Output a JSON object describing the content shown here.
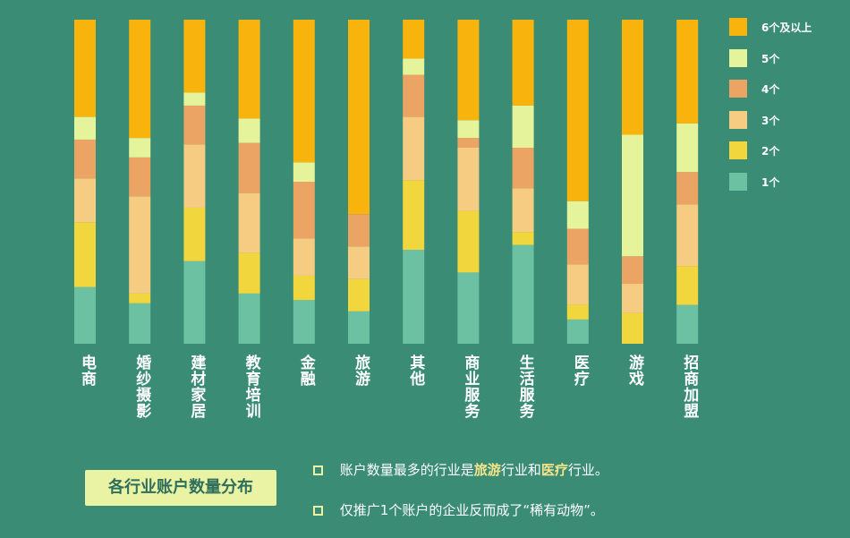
{
  "chart_data": {
    "type": "bar",
    "stacked": true,
    "normalized": true,
    "categories": [
      "电商",
      "婚纱摄影",
      "建材家居",
      "教育培训",
      "金融",
      "旅游",
      "其他",
      "商业服务",
      "生活服务",
      "医疗",
      "游戏",
      "招商加盟"
    ],
    "series": [
      {
        "name": "1个",
        "color": "#6cc1a2",
        "values": [
          17.5,
          12.5,
          25.5,
          15.5,
          13.5,
          10.0,
          29.0,
          22.0,
          30.5,
          7.5,
          0.0,
          12.0
        ]
      },
      {
        "name": "2个",
        "color": "#f1d73d",
        "values": [
          20.0,
          3.0,
          16.5,
          12.5,
          7.5,
          10.0,
          21.5,
          19.0,
          4.0,
          4.5,
          9.5,
          12.0
        ]
      },
      {
        "name": "3个",
        "color": "#f6cc82",
        "values": [
          13.5,
          30.0,
          19.5,
          18.5,
          11.5,
          10.0,
          19.5,
          19.5,
          13.5,
          12.5,
          9.0,
          19.0
        ]
      },
      {
        "name": "4个",
        "color": "#eba464",
        "values": [
          12.0,
          12.0,
          12.0,
          15.5,
          17.5,
          10.0,
          13.0,
          3.0,
          12.5,
          11.0,
          8.5,
          10.0
        ]
      },
      {
        "name": "5个",
        "color": "#e5f49b",
        "values": [
          7.0,
          6.0,
          4.0,
          7.5,
          6.0,
          0.0,
          5.0,
          5.5,
          13.0,
          8.5,
          37.5,
          15.0
        ]
      },
      {
        "name": "6个及以上",
        "color": "#f8b30d",
        "values": [
          30.0,
          36.5,
          22.5,
          30.5,
          44.0,
          60.0,
          12.0,
          31.0,
          26.5,
          56.0,
          35.5,
          32.0
        ]
      }
    ]
  },
  "title": "各行业账户数量分布",
  "notes": [
    {
      "parts": [
        {
          "text": "账户数量最多的行业是",
          "hl": false
        },
        {
          "text": "旅游",
          "hl": true
        },
        {
          "text": "行业和",
          "hl": false
        },
        {
          "text": "医疗",
          "hl": true
        },
        {
          "text": "行业。",
          "hl": false
        }
      ]
    },
    {
      "parts": [
        {
          "text": "仅推广1个账户的企业反而成了“稀有动物”。",
          "hl": false
        }
      ]
    }
  ],
  "colors": {
    "background": "#3a8c74",
    "title_box": "#e9f3a3",
    "title_text": "#2e6e5d",
    "highlight": "#f6e58a"
  }
}
